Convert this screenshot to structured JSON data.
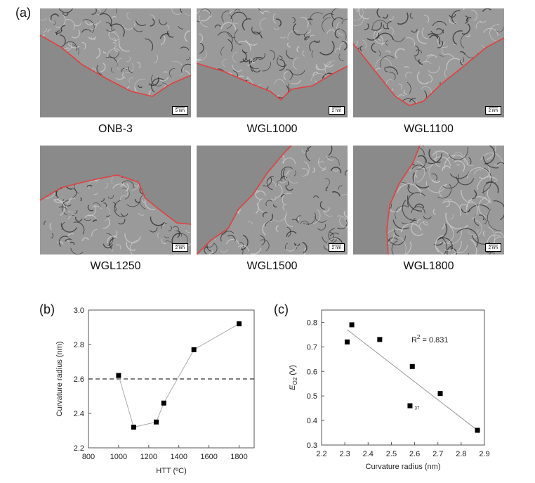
{
  "panel_labels": {
    "a": "(a)",
    "b": "(b)",
    "c": "(c)"
  },
  "tem_images": [
    {
      "label": "ONB-3",
      "scale": "5 nm"
    },
    {
      "label": "WGL1000",
      "scale": "2 nm"
    },
    {
      "label": "WGL1100",
      "scale": "2 nm"
    },
    {
      "label": "WGL1250",
      "scale": "2 nm"
    },
    {
      "label": "WGL1500",
      "scale": "2 nm"
    },
    {
      "label": "WGL1800",
      "scale": "2 nm"
    }
  ],
  "chart_data": [
    {
      "type": "scatter",
      "panel": "(b)",
      "xlabel": "HTT (ºC)",
      "ylabel": "Curvature radius (nm)",
      "xlim": [
        800,
        1900
      ],
      "ylim": [
        2.2,
        3.0
      ],
      "xticks": [
        "800",
        "1000",
        "1200",
        "1400",
        "1600",
        "1800"
      ],
      "yticks": [
        "2.2",
        "2.4",
        "2.6",
        "2.8",
        "3.0"
      ],
      "points": [
        {
          "x": 1000,
          "y": 2.62
        },
        {
          "x": 1100,
          "y": 2.32
        },
        {
          "x": 1250,
          "y": 2.35
        },
        {
          "x": 1300,
          "y": 2.46
        },
        {
          "x": 1500,
          "y": 2.77
        },
        {
          "x": 1800,
          "y": 2.92
        }
      ],
      "connected": true,
      "reference_line": {
        "y": 2.6,
        "style": "dashed"
      }
    },
    {
      "type": "scatter",
      "panel": "(c)",
      "xlabel": "Curvature radius (nm)",
      "ylabel_main": "E",
      "ylabel_sub": "O2",
      "ylabel_unit": " (V)",
      "xlim": [
        2.2,
        2.9
      ],
      "ylim": [
        0.3,
        0.85
      ],
      "xticks": [
        "2.2",
        "2.3",
        "2.4",
        "2.5",
        "2.6",
        "2.7",
        "2.8",
        "2.9"
      ],
      "yticks": [
        "0.3",
        "0.4",
        "0.5",
        "0.6",
        "0.7",
        "0.8"
      ],
      "points": [
        {
          "x": 2.31,
          "y": 0.72
        },
        {
          "x": 2.33,
          "y": 0.79
        },
        {
          "x": 2.45,
          "y": 0.73
        },
        {
          "x": 2.58,
          "y": 0.46
        },
        {
          "x": 2.59,
          "y": 0.62
        },
        {
          "x": 2.71,
          "y": 0.51
        },
        {
          "x": 2.87,
          "y": 0.36
        }
      ],
      "fit_line": {
        "x": [
          2.31,
          2.87
        ],
        "y": [
          0.77,
          0.36
        ]
      },
      "annotation_main": "R",
      "annotation_sup": "2",
      "annotation_rest": " = 0.831",
      "small_label": "37"
    }
  ]
}
